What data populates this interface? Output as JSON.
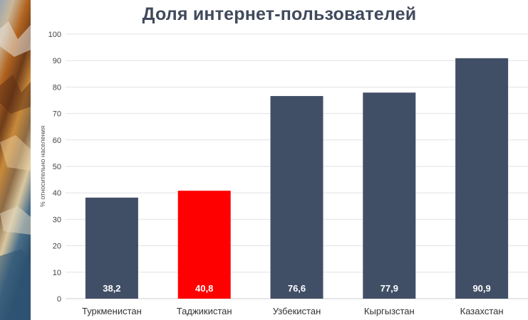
{
  "chart_data": {
    "type": "bar",
    "title": "Доля интернет-пользователей",
    "ylabel": "% относительно населения",
    "xlabel": "",
    "ylim": [
      0,
      100
    ],
    "yticks": [
      0,
      10,
      20,
      30,
      40,
      50,
      60,
      70,
      80,
      90,
      100
    ],
    "categories": [
      "Туркменистан",
      "Таджикистан",
      "Узбекистан",
      "Кыргызстан",
      "Казахстан"
    ],
    "values": [
      38.2,
      40.8,
      76.6,
      77.9,
      90.9
    ],
    "value_labels": [
      "38,2",
      "40,8",
      "76,6",
      "77,9",
      "90,9"
    ],
    "bar_colors": [
      "#414f66",
      "#ff0000",
      "#414f66",
      "#414f66",
      "#414f66"
    ],
    "grid": true,
    "legend": "none"
  },
  "colors": {
    "title": "#404a5c",
    "grid": "#e2e2e2"
  },
  "side_image": "mountain-terrain-relief-map"
}
